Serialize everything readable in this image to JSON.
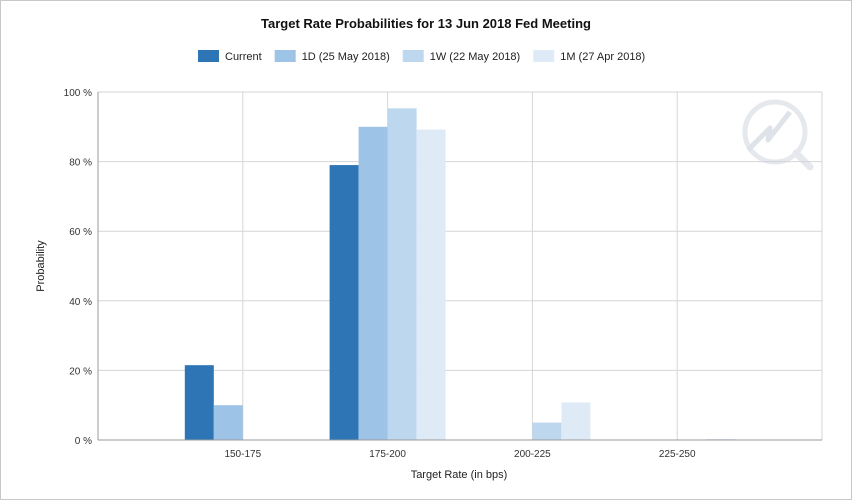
{
  "chart_data": {
    "type": "bar",
    "title": "Target Rate Probabilities for 13 Jun 2018 Fed Meeting",
    "xlabel": "Target Rate (in bps)",
    "ylabel": "Probability",
    "categories": [
      "150-175",
      "175-200",
      "200-225",
      "225-250"
    ],
    "series": [
      {
        "name": "Current",
        "color": "#2e75b6",
        "values": [
          21.5,
          79.0,
          0.0,
          0.0
        ]
      },
      {
        "name": "1D (25 May 2018)",
        "color": "#9dc3e6",
        "values": [
          10.0,
          90.0,
          0.0,
          0.0
        ]
      },
      {
        "name": "1W (22 May 2018)",
        "color": "#bdd7ee",
        "values": [
          0.0,
          95.3,
          5.0,
          0.0
        ]
      },
      {
        "name": "1M (27 Apr 2018)",
        "color": "#deebf7",
        "values": [
          0.0,
          89.2,
          10.8,
          0.3
        ]
      }
    ],
    "ylim": [
      0,
      100
    ],
    "yticks": [
      "0 %",
      "20 %",
      "40 %",
      "60 %",
      "80 %",
      "100 %"
    ],
    "grid": true,
    "legend_position": "top"
  },
  "watermark": {
    "icon": "cme-fedwatch-logo-icon"
  }
}
